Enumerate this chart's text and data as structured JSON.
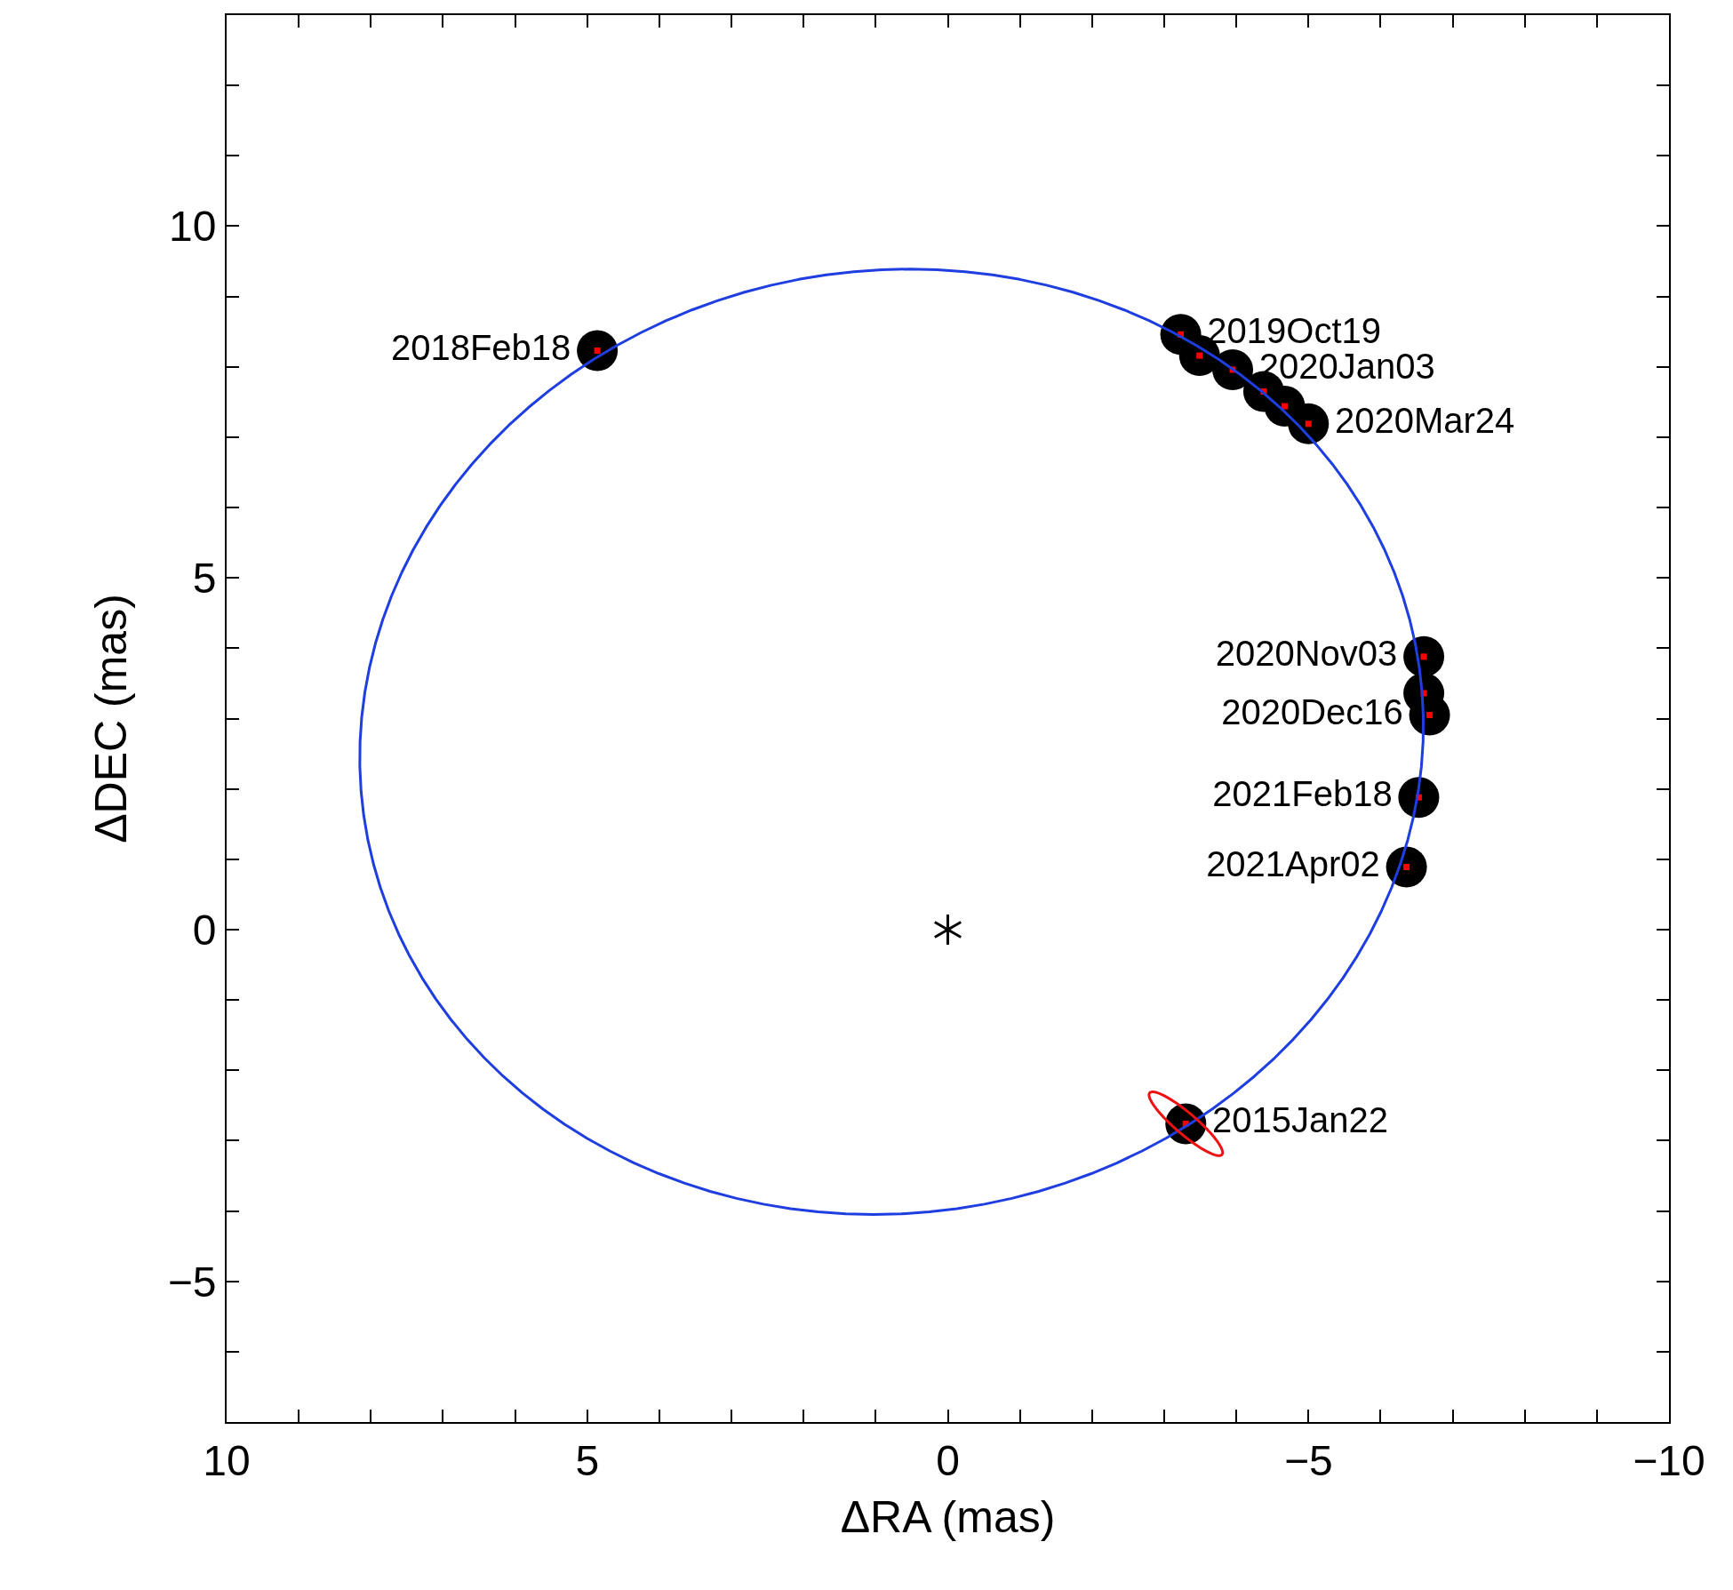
{
  "chart_data": {
    "type": "scatter",
    "xlabel": "ΔRA (mas)",
    "ylabel": "ΔDEC (mas)",
    "xlim": [
      10,
      -10
    ],
    "ylim": [
      -7,
      13
    ],
    "xticks": [
      10,
      {
        "value": 9,
        "label": null
      },
      {
        "value": 8,
        "label": null
      },
      {
        "value": 7,
        "label": null
      },
      {
        "value": 6,
        "label": null
      },
      5,
      {
        "value": 4,
        "label": null
      },
      {
        "value": 3,
        "label": null
      },
      {
        "value": 2,
        "label": null
      },
      {
        "value": 1,
        "label": null
      },
      0,
      {
        "value": -1,
        "label": null
      },
      {
        "value": -2,
        "label": null
      },
      {
        "value": -3,
        "label": null
      },
      {
        "value": -4,
        "label": null
      },
      -5,
      {
        "value": -6,
        "label": null
      },
      {
        "value": -7,
        "label": null
      },
      {
        "value": -8,
        "label": null
      },
      {
        "value": -9,
        "label": null
      },
      -10
    ],
    "yticks": [
      {
        "value": -7,
        "label": null
      },
      {
        "value": -6,
        "label": null
      },
      -5,
      {
        "value": -4,
        "label": null
      },
      {
        "value": -3,
        "label": null
      },
      {
        "value": -2,
        "label": null
      },
      {
        "value": -1,
        "label": null
      },
      0,
      {
        "value": 1,
        "label": null
      },
      {
        "value": 2,
        "label": null
      },
      {
        "value": 3,
        "label": null
      },
      {
        "value": 4,
        "label": null
      },
      5,
      {
        "value": 6,
        "label": null
      },
      {
        "value": 7,
        "label": null
      },
      {
        "value": 8,
        "label": null
      },
      {
        "value": 9,
        "label": null
      },
      10,
      {
        "value": 11,
        "label": null
      },
      {
        "value": 12,
        "label": null
      },
      {
        "value": 13,
        "label": null
      }
    ],
    "grid": false,
    "series": [
      {
        "type": "scatter",
        "color": "#000000",
        "marker": "circle",
        "x": [
          4.86,
          -3.23,
          -3.49,
          -3.95,
          -4.38,
          -4.67,
          -5.0,
          -6.6,
          -6.6,
          -6.68,
          -6.53,
          -6.36,
          -3.3
        ],
        "values": [
          8.23,
          8.46,
          8.16,
          7.96,
          7.65,
          7.44,
          7.19,
          3.88,
          3.36,
          3.05,
          1.88,
          0.89,
          -2.76
        ],
        "value_labels": [
          "2018Feb18",
          "2019Oct19",
          null,
          "2020Jan03",
          null,
          null,
          "2020Mar24",
          "2020Nov03",
          null,
          "2020Dec16",
          "2021Feb18",
          "2021Apr02",
          "2015Jan22"
        ]
      },
      {
        "type": "scatter",
        "color": "#ff0000",
        "marker": "square",
        "x": [
          4.86,
          -3.23,
          -3.49,
          -3.95,
          -4.38,
          -4.67,
          -5.0,
          -6.6,
          -6.6,
          -6.68,
          -6.53,
          -6.36,
          -3.3
        ],
        "values": [
          8.23,
          8.46,
          8.16,
          7.96,
          7.65,
          7.44,
          7.19,
          3.88,
          3.36,
          3.05,
          1.88,
          0.89,
          -2.76
        ]
      }
    ]
  }
}
